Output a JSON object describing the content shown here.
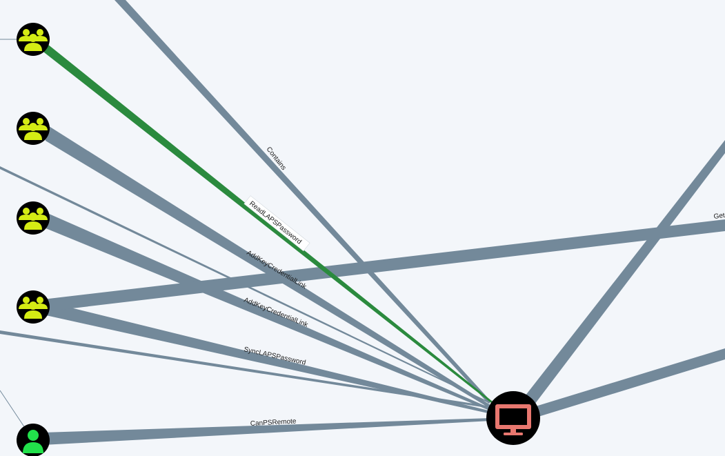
{
  "colors": {
    "background": "#f3f6fa",
    "edge": "#73899a",
    "edge_highlight": "#2b8a3e",
    "node_bg": "#000000",
    "group_icon": "#d5ec14",
    "user_icon": "#22e14b",
    "computer_icon": "#e8776f"
  },
  "nodes": [
    {
      "id": "group-1",
      "type": "group",
      "icon": "users-icon"
    },
    {
      "id": "group-2",
      "type": "group",
      "icon": "users-icon"
    },
    {
      "id": "group-3",
      "type": "group",
      "icon": "users-icon"
    },
    {
      "id": "group-4",
      "type": "group",
      "icon": "users-icon"
    },
    {
      "id": "user-1",
      "type": "user",
      "icon": "user-icon"
    },
    {
      "id": "computer-1",
      "type": "computer",
      "icon": "monitor-icon"
    }
  ],
  "edges": {
    "contains": {
      "label": "Contains"
    },
    "read_laps": {
      "label": "ReadLAPSPassword"
    },
    "add_key_1": {
      "label": "AddKeyCredentialLink"
    },
    "add_key_2": {
      "label": "AddKeyCredentialLink"
    },
    "sync_laps": {
      "label": "SyncLAPSPassword"
    },
    "can_ps_remote": {
      "label": "CanPSRemote"
    },
    "get_partial": {
      "label": "Get"
    }
  }
}
